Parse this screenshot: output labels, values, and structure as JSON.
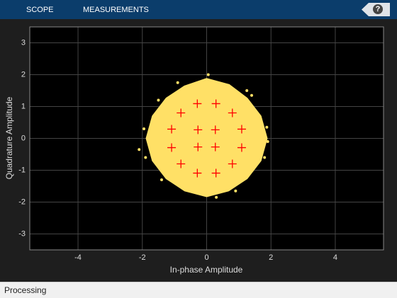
{
  "toolbar": {
    "tabs": [
      "SCOPE",
      "MEASUREMENTS"
    ],
    "help": "?"
  },
  "chart_data": {
    "type": "scatter",
    "xlabel": "In-phase Amplitude",
    "ylabel": "Quadrature Amplitude",
    "xlim": [
      -5.5,
      5.5
    ],
    "ylim": [
      -3.5,
      3.5
    ],
    "xticks": [
      -4,
      -2,
      0,
      2,
      4
    ],
    "yticks": [
      -3,
      -2,
      -1,
      0,
      1,
      2,
      3
    ],
    "grid": true,
    "series": [
      {
        "color": "#ffe066",
        "fill": true,
        "x": [
          1.85,
          1.66,
          1.24,
          0.69,
          0,
          -0.67,
          -1.24,
          -1.66,
          -1.85,
          -1.66,
          -1.24,
          -0.67,
          0,
          0.67,
          1.24,
          1.66
        ],
        "y": [
          0,
          0.69,
          1.24,
          1.66,
          1.85,
          1.62,
          1.24,
          0.69,
          0,
          -0.69,
          -1.24,
          -1.62,
          -1.8,
          -1.62,
          -1.24,
          -0.69
        ]
      },
      {
        "color": "#ffe066",
        "marker": "dot",
        "x": [
          -2.1,
          0.05,
          1.87,
          1.9,
          -1.95,
          0.3,
          -1.4,
          1.4,
          -0.9,
          -1.9,
          1.8,
          0.9,
          -1.5,
          1.25
        ],
        "y": [
          -0.35,
          2.0,
          0.35,
          -0.1,
          0.3,
          -1.85,
          -1.3,
          1.35,
          1.75,
          -0.6,
          -0.6,
          -1.65,
          1.2,
          1.5
        ]
      },
      {
        "color": "#ff0000",
        "marker": "plus",
        "x": [
          0.27,
          -0.27,
          -0.27,
          0.27,
          1.09,
          0.8,
          0.29,
          -0.29,
          -0.8,
          -1.09,
          -1.09,
          -0.8,
          -0.29,
          0.29,
          0.8,
          1.09
        ],
        "y": [
          0.27,
          0.27,
          -0.27,
          -0.27,
          0.29,
          0.8,
          1.09,
          1.09,
          0.8,
          0.29,
          -0.29,
          -0.8,
          -1.09,
          -1.09,
          -0.8,
          -0.29
        ]
      }
    ]
  },
  "status": "Processing"
}
